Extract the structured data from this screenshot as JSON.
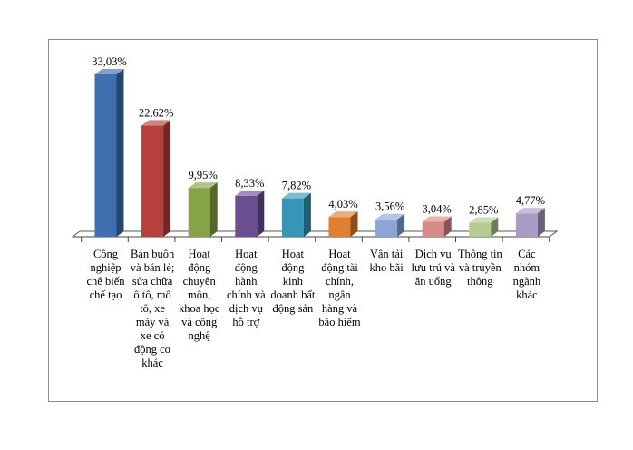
{
  "chart_data": {
    "type": "bar",
    "title": "",
    "xlabel": "",
    "ylabel": "",
    "ylim": [
      0,
      33.03
    ],
    "grid": false,
    "legend": "none",
    "categories": [
      "Công nghiệp chế biến chế tạo",
      "Bán buôn và bán lẻ; sửa chữa ô tô, mô tô, xe máy và xe có động cơ khác",
      "Hoạt động chuyên môn, khoa học và công nghệ",
      "Hoạt động hành chính và dịch vụ hỗ trợ",
      "Hoạt động kinh doanh bất động sản",
      "Hoạt động tài chính, ngân hàng và bảo hiểm",
      "Vận tải kho bãi",
      "Dịch vụ lưu trú và ăn uống",
      "Thông tin và truyền thông",
      "Các nhóm ngành khác"
    ],
    "values": [
      33.03,
      22.62,
      9.95,
      8.33,
      7.82,
      4.03,
      3.56,
      3.04,
      2.85,
      4.77
    ],
    "value_labels": [
      "33,03%",
      "22,62%",
      "9,95%",
      "8,33%",
      "7,82%",
      "4,03%",
      "3,56%",
      "3,04%",
      "2,85%",
      "4,77%"
    ],
    "colors": [
      "#3f6fb0",
      "#b5403c",
      "#86a447",
      "#6b4f93",
      "#3596b8",
      "#e07f30",
      "#8aa5d6",
      "#d88a88",
      "#b3cc90",
      "#a89cc6"
    ]
  }
}
